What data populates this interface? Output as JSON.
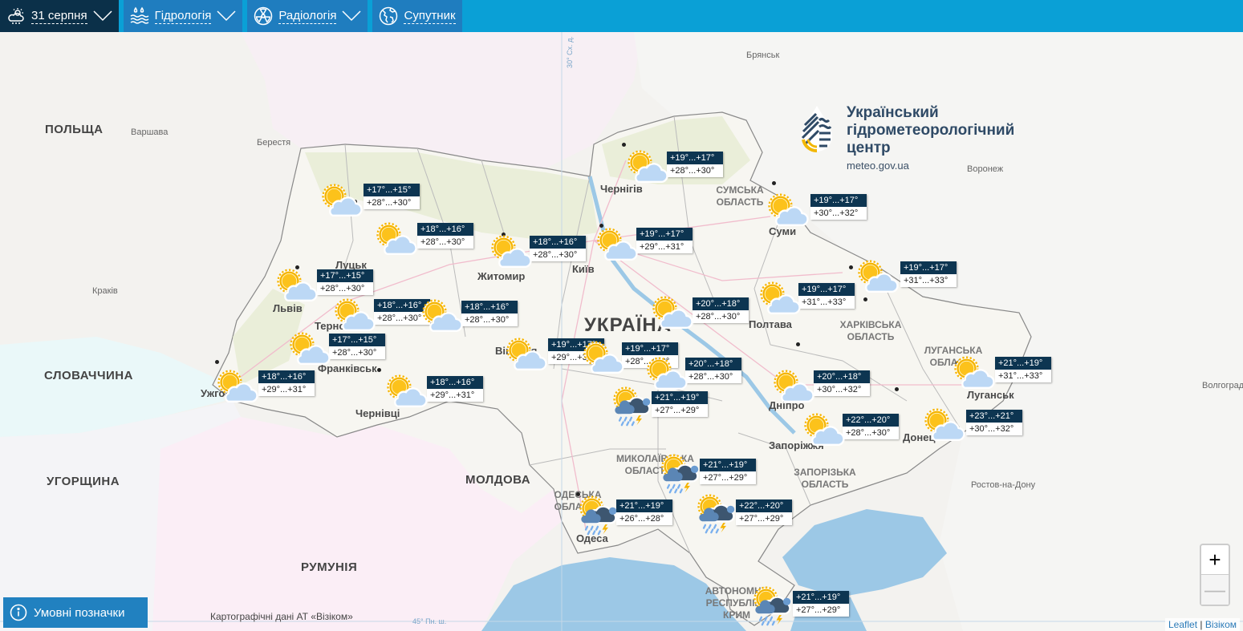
{
  "header": {
    "tabs": [
      {
        "label": "31 серпня",
        "icon": "weather-cloud-sun-icon",
        "has_dropdown": true,
        "active": true
      },
      {
        "label": "Гідрологія",
        "icon": "water-drops-waves-icon",
        "has_dropdown": true
      },
      {
        "label": "Радіологія",
        "icon": "radiation-icon",
        "has_dropdown": true
      },
      {
        "label": "Супутник",
        "icon": "globe-icon",
        "has_dropdown": false
      }
    ]
  },
  "logo": {
    "line1": "Український",
    "line2": "гідрометеорологічний",
    "line3": "центр",
    "url": "meteo.gov.ua"
  },
  "map_labels": {
    "countries": [
      "ПОЛЬЩА",
      "СЛОВАЧЧИНА",
      "УГОРЩИНА",
      "МОЛДОВА",
      "РУМУНІЯ",
      "УКРАЇНА"
    ],
    "foreign_cities": [
      "Варшава",
      "Берестя",
      "Брянськ",
      "Воронеж",
      "Краків",
      "Волгоград",
      "Ростов-на-Дону"
    ],
    "cities": [
      "Луцьк",
      "Львів",
      "Тернопіль",
      "Франківськ",
      "Чернівці",
      "Ужгород",
      "Житомир",
      "Київ",
      "Вінниця",
      "Чернігів",
      "Суми",
      "Полтава",
      "Дніпро",
      "Запоріжжя",
      "Луганськ",
      "Донецьк",
      "Одеса"
    ],
    "oblasts": [
      "СУМСЬКА ОБЛАСТЬ",
      "ХАРКІВСЬКА ОБЛАСТЬ",
      "ЛУГАНСЬКА ОБЛАСТЬ",
      "ЗАПОРІЗЬКА ОБЛАСТЬ",
      "МИКОЛАЇВСЬКА ОБЛАСТЬ",
      "ОДЕСЬКА ОБЛАСТЬ",
      "АВТОНОМНА РЕСПУБЛІКА КРИМ"
    ],
    "graticule": [
      "30° Сх. д.",
      "45° Пн. ш."
    ]
  },
  "forecasts": [
    {
      "night": "+17°...+15°",
      "day": "+28°...+30°",
      "condition": "partly-cloudy"
    },
    {
      "night": "+18°...+16°",
      "day": "+28°...+30°",
      "condition": "partly-cloudy"
    },
    {
      "night": "+18°...+16°",
      "day": "+28°...+30°",
      "condition": "partly-cloudy"
    },
    {
      "night": "+19°...+17°",
      "day": "+29°...+31°",
      "condition": "partly-cloudy"
    },
    {
      "night": "+19°...+17°",
      "day": "+28°...+30°",
      "condition": "partly-cloudy"
    },
    {
      "night": "+19°...+17°",
      "day": "+30°...+32°",
      "condition": "partly-cloudy"
    },
    {
      "night": "+19°...+17°",
      "day": "+31°...+33°",
      "condition": "partly-cloudy"
    },
    {
      "night": "+19°...+17°",
      "day": "+31°...+33°",
      "condition": "partly-cloudy"
    },
    {
      "night": "+20°...+18°",
      "day": "+28°...+30°",
      "condition": "partly-cloudy"
    },
    {
      "night": "+17°...+15°",
      "day": "+28°...+30°",
      "condition": "partly-cloudy"
    },
    {
      "night": "+18°...+16°",
      "day": "+28°...+30°",
      "condition": "partly-cloudy"
    },
    {
      "night": "+18°...+16°",
      "day": "+28°...+30°",
      "condition": "partly-cloudy"
    },
    {
      "night": "+17°...+15°",
      "day": "+28°...+30°",
      "condition": "partly-cloudy"
    },
    {
      "night": "+18°...+16°",
      "day": "+29°...+31°",
      "condition": "partly-cloudy"
    },
    {
      "night": "+18°...+16°",
      "day": "+29°...+31°",
      "condition": "partly-cloudy"
    },
    {
      "night": "+19°...+17°",
      "day": "+29°...+31°",
      "condition": "partly-cloudy"
    },
    {
      "night": "+19°...+17°",
      "day": "+28°...+30°",
      "condition": "partly-cloudy"
    },
    {
      "night": "+20°...+18°",
      "day": "+28°...+30°",
      "condition": "partly-cloudy"
    },
    {
      "night": "+20°...+18°",
      "day": "+30°...+32°",
      "condition": "partly-cloudy"
    },
    {
      "night": "+21°...+19°",
      "day": "+31°...+33°",
      "condition": "partly-cloudy"
    },
    {
      "night": "+22°...+20°",
      "day": "+28°...+30°",
      "condition": "partly-cloudy"
    },
    {
      "night": "+23°...+21°",
      "day": "+30°...+32°",
      "condition": "partly-cloudy"
    },
    {
      "night": "+21°...+19°",
      "day": "+27°...+29°",
      "condition": "thunderstorm-rain"
    },
    {
      "night": "+21°...+19°",
      "day": "+27°...+29°",
      "condition": "thunderstorm-rain"
    },
    {
      "night": "+21°...+19°",
      "day": "+26°...+28°",
      "condition": "thunderstorm-rain"
    },
    {
      "night": "+22°...+20°",
      "day": "+27°...+29°",
      "condition": "thunderstorm-rain"
    },
    {
      "night": "+21°...+19°",
      "day": "+27°...+29°",
      "condition": "thunderstorm-rain"
    }
  ],
  "controls": {
    "zoom_in": "+",
    "zoom_out": "—",
    "legend_label": "Умовні позначки",
    "legend_icon": "info-icon"
  },
  "attribution": {
    "carto": "Картографічні дані АТ «Візіком»",
    "leaflet": "Leaflet",
    "separator": "|",
    "vizicom": "Візіком"
  },
  "colors": {
    "header_bg": "#0aa0d6",
    "tab_bg": "#1f7dbf",
    "active_tab_bg": "#0b3049",
    "forecast_night_bg": "#0d3551",
    "sea": "#9cc8e6"
  }
}
